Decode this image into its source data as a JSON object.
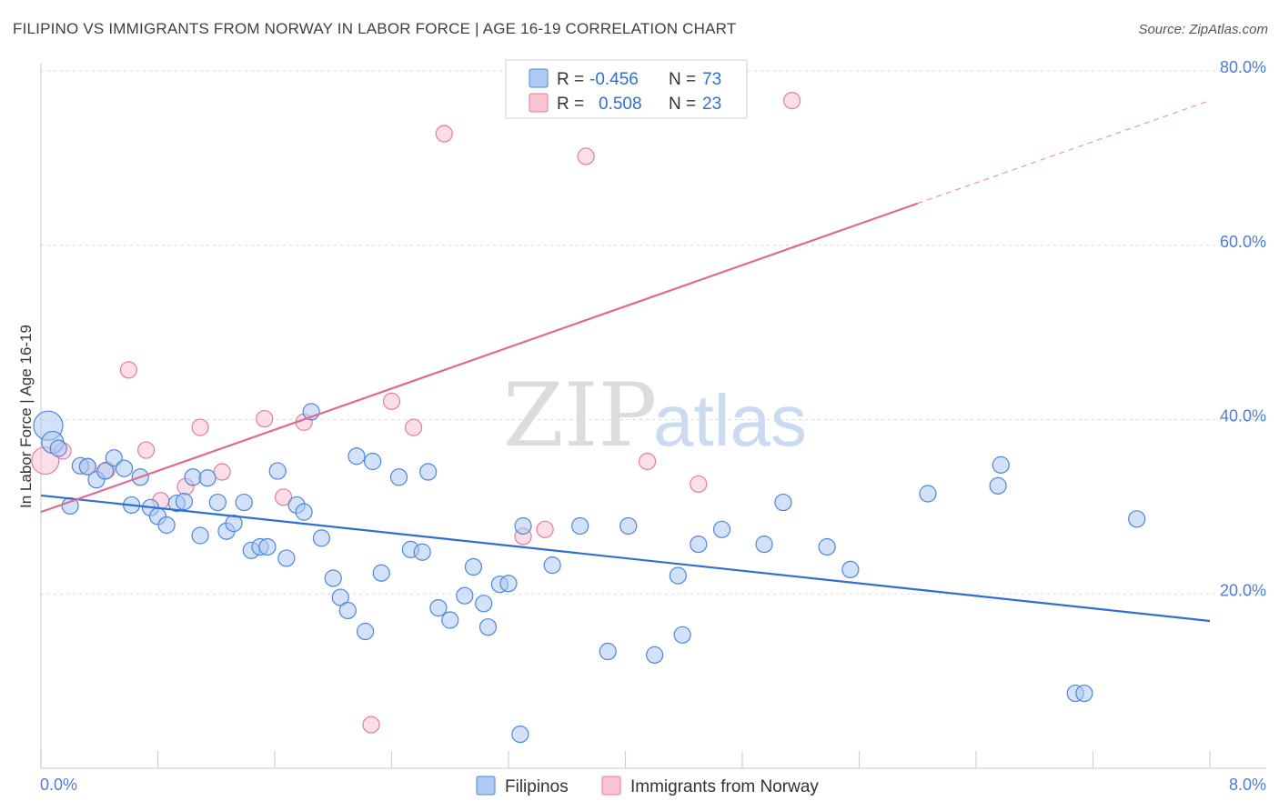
{
  "title": "FILIPINO VS IMMIGRANTS FROM NORWAY IN LABOR FORCE | AGE 16-19 CORRELATION CHART",
  "source": "Source: ZipAtlas.com",
  "watermark": {
    "part1": "ZIP",
    "part2": "atlas"
  },
  "legend": {
    "rows": [
      {
        "r_label": "R =",
        "r_value": "-0.456",
        "n_label": "N =",
        "n_value": "73"
      },
      {
        "r_label": "R =",
        "r_value": "0.508",
        "n_label": "N =",
        "n_value": "23"
      }
    ]
  },
  "colors": {
    "blue_fill": "#aecbf3",
    "blue_stroke": "#4d86dc",
    "blue_line": "#2f6fd1",
    "pink_fill": "#f8c3d3",
    "pink_stroke": "#e47d9f",
    "pink_line": "#e06a93",
    "grid": "#d9d9d9",
    "tick_text": "#4a7fd4",
    "text_dark": "#333333"
  },
  "chart_data": {
    "type": "scatter",
    "title": "FILIPINO VS IMMIGRANTS FROM NORWAY IN LABOR FORCE | AGE 16-19 CORRELATION CHART",
    "xlabel": "",
    "ylabel": "In Labor Force | Age 16-19",
    "xlim": [
      0,
      8
    ],
    "ylim": [
      0,
      80
    ],
    "x_tick_labels": [
      "0.0%",
      "8.0%"
    ],
    "y_ticks": [
      20,
      40,
      60,
      80
    ],
    "y_tick_labels": [
      "20.0%",
      "40.0%",
      "60.0%",
      "80.0%"
    ],
    "grid": true,
    "series": [
      {
        "name": "Filipinos",
        "r": -0.456,
        "n": 73,
        "trend": {
          "x0": 0,
          "y0": 31.3,
          "x1": 8,
          "y1": 16.9,
          "dashed_from": null
        },
        "points": [
          [
            0.05,
            39.3
          ],
          [
            0.08,
            37.4
          ],
          [
            0.12,
            36.7
          ],
          [
            0.2,
            30.1
          ],
          [
            0.27,
            34.7
          ],
          [
            0.32,
            34.6
          ],
          [
            0.38,
            33.1
          ],
          [
            0.44,
            34.1
          ],
          [
            0.5,
            35.6
          ],
          [
            0.57,
            34.4
          ],
          [
            0.62,
            30.2
          ],
          [
            0.68,
            33.4
          ],
          [
            0.75,
            29.9
          ],
          [
            0.8,
            28.9
          ],
          [
            0.86,
            27.9
          ],
          [
            0.93,
            30.4
          ],
          [
            0.98,
            30.6
          ],
          [
            1.04,
            33.4
          ],
          [
            1.09,
            26.7
          ],
          [
            1.14,
            33.3
          ],
          [
            1.21,
            30.5
          ],
          [
            1.27,
            27.2
          ],
          [
            1.32,
            28.1
          ],
          [
            1.39,
            30.5
          ],
          [
            1.44,
            25.0
          ],
          [
            1.5,
            25.4
          ],
          [
            1.55,
            25.4
          ],
          [
            1.62,
            34.1
          ],
          [
            1.68,
            24.1
          ],
          [
            1.75,
            30.2
          ],
          [
            1.8,
            29.4
          ],
          [
            1.85,
            40.9
          ],
          [
            1.92,
            26.4
          ],
          [
            2.0,
            21.8
          ],
          [
            2.05,
            19.6
          ],
          [
            2.1,
            18.1
          ],
          [
            2.16,
            35.8
          ],
          [
            2.22,
            15.7
          ],
          [
            2.27,
            35.2
          ],
          [
            2.33,
            22.4
          ],
          [
            2.45,
            33.4
          ],
          [
            2.53,
            25.1
          ],
          [
            2.61,
            24.8
          ],
          [
            2.65,
            34.0
          ],
          [
            2.72,
            18.4
          ],
          [
            2.8,
            17.0
          ],
          [
            2.9,
            19.8
          ],
          [
            2.96,
            23.1
          ],
          [
            3.03,
            18.9
          ],
          [
            3.06,
            16.2
          ],
          [
            3.14,
            21.1
          ],
          [
            3.2,
            21.2
          ],
          [
            3.28,
            3.9
          ],
          [
            3.3,
            27.8
          ],
          [
            3.5,
            23.3
          ],
          [
            3.69,
            27.8
          ],
          [
            3.88,
            13.4
          ],
          [
            4.02,
            27.8
          ],
          [
            4.2,
            13.0
          ],
          [
            4.36,
            22.1
          ],
          [
            4.39,
            15.3
          ],
          [
            4.5,
            25.7
          ],
          [
            4.66,
            27.4
          ],
          [
            4.95,
            25.7
          ],
          [
            5.08,
            30.5
          ],
          [
            5.38,
            25.4
          ],
          [
            5.54,
            22.8
          ],
          [
            6.07,
            31.5
          ],
          [
            6.55,
            32.4
          ],
          [
            6.57,
            34.8
          ],
          [
            7.08,
            8.6
          ],
          [
            7.14,
            8.6
          ],
          [
            7.5,
            28.6
          ]
        ]
      },
      {
        "name": "Immigrants from Norway",
        "r": 0.508,
        "n": 23,
        "trend": {
          "x0": 0,
          "y0": 29.4,
          "x1": 8,
          "y1": 76.6,
          "dashed_from": 6.0
        },
        "points": [
          [
            0.03,
            35.3
          ],
          [
            0.15,
            36.4
          ],
          [
            0.32,
            34.6
          ],
          [
            0.45,
            34.2
          ],
          [
            0.6,
            45.7
          ],
          [
            0.72,
            36.5
          ],
          [
            0.82,
            30.7
          ],
          [
            0.99,
            32.3
          ],
          [
            1.09,
            39.1
          ],
          [
            1.24,
            34.0
          ],
          [
            1.53,
            40.1
          ],
          [
            1.66,
            31.1
          ],
          [
            1.8,
            39.7
          ],
          [
            2.26,
            5.0
          ],
          [
            2.4,
            42.1
          ],
          [
            2.55,
            39.1
          ],
          [
            2.76,
            72.8
          ],
          [
            3.3,
            26.6
          ],
          [
            3.45,
            27.4
          ],
          [
            3.73,
            70.2
          ],
          [
            4.15,
            35.2
          ],
          [
            4.5,
            32.6
          ],
          [
            5.14,
            76.6
          ]
        ]
      }
    ]
  },
  "bottom_legend": {
    "items": [
      {
        "label": "Filipinos"
      },
      {
        "label": "Immigrants from Norway"
      }
    ]
  }
}
